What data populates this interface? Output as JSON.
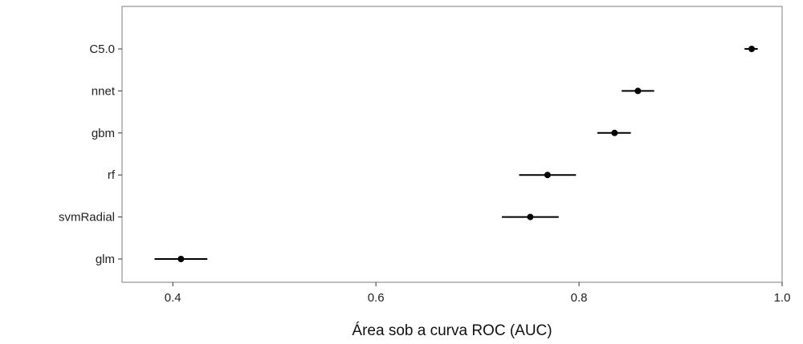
{
  "chart_data": {
    "type": "dot_errorbar",
    "title": "",
    "xlabel": "Área sob a curva ROC (AUC)",
    "ylabel": "",
    "xlim": [
      0.35,
      1.0
    ],
    "xticks": [
      0.4,
      0.6,
      0.8,
      1.0
    ],
    "xtick_labels": [
      "0.4",
      "0.6",
      "0.8",
      "1.0"
    ],
    "grid": false,
    "categories": [
      "C5.0",
      "nnet",
      "gbm",
      "rf",
      "svmRadial",
      "glm"
    ],
    "series": [
      {
        "values": [
          0.97,
          0.858,
          0.835,
          0.769,
          0.752,
          0.408
        ],
        "lower": [
          0.963,
          0.842,
          0.818,
          0.741,
          0.724,
          0.382
        ],
        "upper": [
          0.976,
          0.874,
          0.851,
          0.797,
          0.78,
          0.434
        ]
      }
    ],
    "colors": {
      "point": "#000000",
      "errorbar": "#000000",
      "frame": "#7f7f7f"
    }
  }
}
